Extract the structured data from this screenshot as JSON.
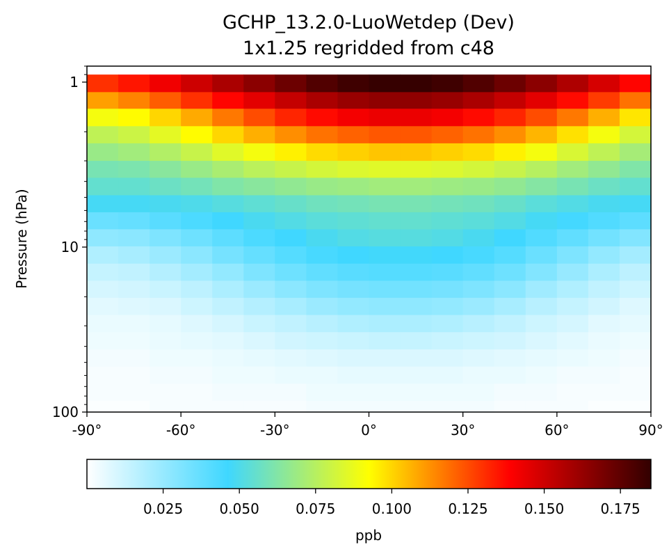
{
  "chart_data": {
    "type": "heatmap",
    "title": "GCHP_13.2.0-LuoWetdep (Dev)",
    "subtitle": "1x1.25 regridded from c48",
    "xlabel": "",
    "ylabel": "Pressure (hPa)",
    "xlim": [
      -90,
      90
    ],
    "ylim": [
      100,
      0.8
    ],
    "yscale": "log",
    "x_ticks": [
      -90,
      -60,
      -30,
      0,
      30,
      60,
      90
    ],
    "x_tick_labels": [
      "-90°",
      "-60°",
      "-30°",
      "0°",
      "30°",
      "60°",
      "90°"
    ],
    "y_ticks": [
      1,
      10,
      100
    ],
    "y_tick_labels": [
      "1",
      "10",
      "100"
    ],
    "colorbar": {
      "label": "ppb",
      "min": 0.0,
      "max": 0.185,
      "ticks": [
        0.025,
        0.05,
        0.075,
        0.1,
        0.125,
        0.15,
        0.175
      ],
      "tick_labels": [
        "0.025",
        "0.050",
        "0.075",
        "0.100",
        "0.125",
        "0.150",
        "0.175"
      ],
      "colors": [
        "#ffffff",
        "#3fd7ff",
        "#ffff00",
        "#ff0000",
        "#320000"
      ],
      "color_stops": [
        0.0,
        0.25,
        0.5,
        0.75,
        1.0
      ]
    },
    "latitude_bins": [
      -90,
      -80,
      -70,
      -60,
      -50,
      -40,
      -30,
      -20,
      -10,
      0,
      10,
      20,
      30,
      40,
      50,
      60,
      70,
      80,
      90
    ],
    "pressure_levels_hPa": [
      0.9,
      1.15,
      1.45,
      1.85,
      2.35,
      3.0,
      3.8,
      4.85,
      6.15,
      7.8,
      9.9,
      12.6,
      16.0,
      20.3,
      25.8,
      32.8,
      41.7,
      53.0,
      67.3,
      85.5,
      100
    ],
    "values": [
      [
        0.13,
        0.135,
        0.142,
        0.15,
        0.158,
        0.165,
        0.172,
        0.178,
        0.182,
        0.184,
        0.184,
        0.182,
        0.178,
        0.172,
        0.165,
        0.157,
        0.148,
        0.138
      ],
      [
        0.11,
        0.115,
        0.122,
        0.13,
        0.138,
        0.145,
        0.152,
        0.158,
        0.162,
        0.164,
        0.164,
        0.162,
        0.158,
        0.152,
        0.145,
        0.137,
        0.128,
        0.118
      ],
      [
        0.09,
        0.093,
        0.1,
        0.108,
        0.117,
        0.125,
        0.132,
        0.137,
        0.141,
        0.143,
        0.143,
        0.141,
        0.137,
        0.132,
        0.125,
        0.117,
        0.107,
        0.097
      ],
      [
        0.077,
        0.08,
        0.086,
        0.093,
        0.1,
        0.107,
        0.113,
        0.118,
        0.121,
        0.123,
        0.123,
        0.121,
        0.118,
        0.113,
        0.106,
        0.098,
        0.09,
        0.082
      ],
      [
        0.068,
        0.07,
        0.074,
        0.079,
        0.085,
        0.09,
        0.095,
        0.099,
        0.101,
        0.103,
        0.103,
        0.101,
        0.099,
        0.095,
        0.09,
        0.083,
        0.077,
        0.071
      ],
      [
        0.06,
        0.061,
        0.064,
        0.068,
        0.072,
        0.076,
        0.079,
        0.082,
        0.084,
        0.085,
        0.085,
        0.084,
        0.082,
        0.079,
        0.075,
        0.07,
        0.066,
        0.062
      ],
      [
        0.055,
        0.055,
        0.057,
        0.059,
        0.062,
        0.064,
        0.066,
        0.068,
        0.069,
        0.07,
        0.07,
        0.069,
        0.068,
        0.066,
        0.063,
        0.06,
        0.057,
        0.055
      ],
      [
        0.048,
        0.048,
        0.049,
        0.05,
        0.052,
        0.054,
        0.056,
        0.058,
        0.059,
        0.06,
        0.06,
        0.059,
        0.058,
        0.056,
        0.053,
        0.051,
        0.049,
        0.048
      ],
      [
        0.036,
        0.037,
        0.04,
        0.043,
        0.046,
        0.049,
        0.051,
        0.053,
        0.054,
        0.055,
        0.055,
        0.054,
        0.053,
        0.051,
        0.048,
        0.045,
        0.042,
        0.039
      ],
      [
        0.027,
        0.028,
        0.031,
        0.035,
        0.039,
        0.043,
        0.046,
        0.049,
        0.051,
        0.052,
        0.052,
        0.051,
        0.049,
        0.046,
        0.042,
        0.038,
        0.034,
        0.03
      ],
      [
        0.019,
        0.021,
        0.024,
        0.028,
        0.033,
        0.037,
        0.041,
        0.044,
        0.046,
        0.047,
        0.047,
        0.046,
        0.044,
        0.041,
        0.036,
        0.031,
        0.026,
        0.022
      ],
      [
        0.014,
        0.015,
        0.018,
        0.022,
        0.026,
        0.031,
        0.035,
        0.038,
        0.04,
        0.041,
        0.041,
        0.04,
        0.038,
        0.035,
        0.03,
        0.025,
        0.02,
        0.016
      ],
      [
        0.01,
        0.011,
        0.013,
        0.016,
        0.02,
        0.024,
        0.028,
        0.031,
        0.033,
        0.034,
        0.034,
        0.033,
        0.031,
        0.028,
        0.023,
        0.019,
        0.015,
        0.012
      ],
      [
        0.007,
        0.008,
        0.009,
        0.012,
        0.015,
        0.018,
        0.021,
        0.024,
        0.026,
        0.027,
        0.027,
        0.026,
        0.024,
        0.021,
        0.017,
        0.014,
        0.011,
        0.008
      ],
      [
        0.005,
        0.005,
        0.006,
        0.008,
        0.01,
        0.013,
        0.015,
        0.017,
        0.019,
        0.02,
        0.02,
        0.019,
        0.017,
        0.015,
        0.012,
        0.01,
        0.007,
        0.006
      ],
      [
        0.004,
        0.004,
        0.005,
        0.006,
        0.007,
        0.009,
        0.011,
        0.012,
        0.013,
        0.014,
        0.014,
        0.013,
        0.012,
        0.011,
        0.009,
        0.007,
        0.005,
        0.004
      ],
      [
        0.003,
        0.003,
        0.004,
        0.004,
        0.005,
        0.006,
        0.007,
        0.008,
        0.009,
        0.009,
        0.009,
        0.009,
        0.008,
        0.007,
        0.006,
        0.005,
        0.004,
        0.003
      ],
      [
        0.002,
        0.002,
        0.003,
        0.003,
        0.004,
        0.004,
        0.005,
        0.005,
        0.006,
        0.006,
        0.006,
        0.006,
        0.005,
        0.005,
        0.004,
        0.003,
        0.003,
        0.002
      ],
      [
        0.002,
        0.002,
        0.002,
        0.002,
        0.003,
        0.003,
        0.003,
        0.004,
        0.004,
        0.004,
        0.004,
        0.004,
        0.004,
        0.003,
        0.003,
        0.002,
        0.002,
        0.002
      ],
      [
        0.001,
        0.001,
        0.002,
        0.002,
        0.002,
        0.002,
        0.002,
        0.003,
        0.003,
        0.003,
        0.003,
        0.003,
        0.003,
        0.002,
        0.002,
        0.002,
        0.001,
        0.001
      ]
    ]
  }
}
